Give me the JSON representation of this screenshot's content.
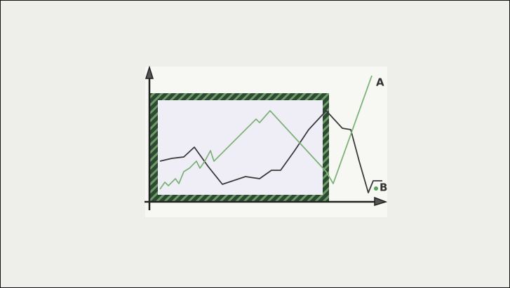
{
  "lines": [
    {
      "label": "A"
    },
    {
      "label": "B"
    }
  ]
}
